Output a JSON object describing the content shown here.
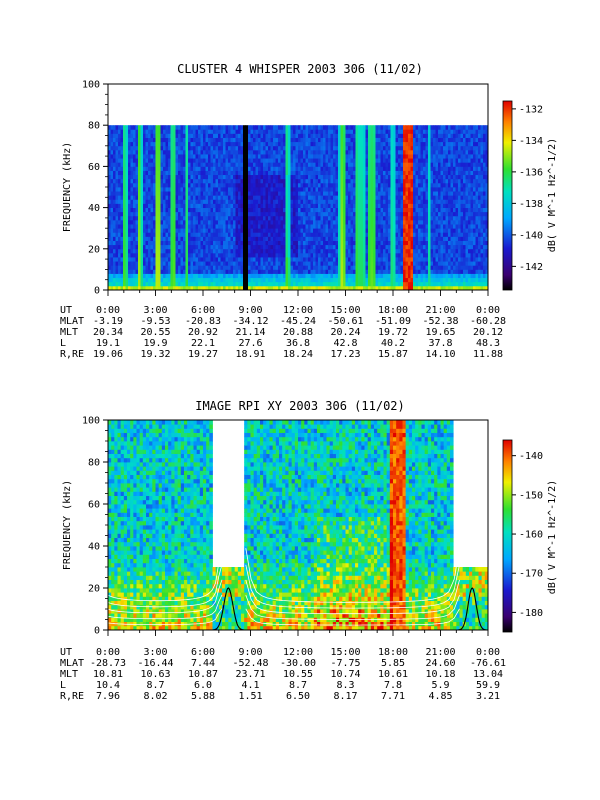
{
  "chart_data": [
    {
      "type": "heatmap",
      "title": "CLUSTER 4 WHISPER 2003 306 (11/02)",
      "ylabel": "FREQUENCY (kHz)",
      "ylim": [
        0,
        100
      ],
      "y_ticks": [
        "0",
        "20",
        "40",
        "60",
        "80",
        "100"
      ],
      "data_max_frequency_khz": 80,
      "x_ticks": [
        "0:00",
        "3:00",
        "6:00",
        "9:00",
        "12:00",
        "15:00",
        "18:00",
        "21:00",
        "0:00"
      ],
      "colorbar": {
        "label": "dB( V M^-1 Hz^-1/2)",
        "range": [
          -143.5,
          -131.5
        ],
        "ticks": [
          "-132",
          "-134",
          "-136",
          "-138",
          "-140",
          "-142"
        ],
        "tick_values": [
          -132,
          -134,
          -136,
          -138,
          -140,
          -142
        ]
      },
      "orbit_table": {
        "rows": [
          {
            "label": "UT",
            "values": [
              "0:00",
              "3:00",
              "6:00",
              "9:00",
              "12:00",
              "15:00",
              "18:00",
              "21:00",
              "0:00"
            ]
          },
          {
            "label": "MLAT",
            "values": [
              "-3.19",
              "-9.53",
              "-20.83",
              "-34.12",
              "-45.24",
              "-50.61",
              "-51.09",
              "-52.38",
              "-60.28"
            ]
          },
          {
            "label": "MLT",
            "values": [
              "20.34",
              "20.55",
              "20.92",
              "21.14",
              "20.88",
              "20.24",
              "19.72",
              "19.65",
              "20.12"
            ]
          },
          {
            "label": "L",
            "values": [
              "19.1",
              "19.9",
              "22.1",
              "27.6",
              "36.8",
              "42.8",
              "40.2",
              "37.8",
              "48.3"
            ]
          },
          {
            "label": "R,RE",
            "values": [
              "19.06",
              "19.32",
              "19.27",
              "18.91",
              "18.24",
              "17.23",
              "15.87",
              "14.10",
              "11.88"
            ]
          }
        ]
      }
    },
    {
      "type": "heatmap",
      "title": "IMAGE RPI XY 2003 306 (11/02)",
      "ylabel": "FREQUENCY (kHz)",
      "ylim": [
        0,
        100
      ],
      "y_ticks": [
        "0",
        "20",
        "40",
        "60",
        "80",
        "100"
      ],
      "x_ticks": [
        "0:00",
        "3:00",
        "6:00",
        "9:00",
        "12:00",
        "15:00",
        "18:00",
        "21:00",
        "0:00"
      ],
      "data_gaps_ut_hours": [
        [
          6.6,
          8.5
        ],
        [
          21.9,
          24.0
        ]
      ],
      "colorbar": {
        "label": "dB( V M^-1 Hz^-1/2)",
        "range": [
          -185,
          -136
        ],
        "ticks": [
          "-140",
          "-150",
          "-160",
          "-170",
          "-180"
        ],
        "tick_values": [
          -140,
          -150,
          -160,
          -170,
          -180
        ]
      },
      "orbit_table": {
        "rows": [
          {
            "label": "UT",
            "values": [
              "0:00",
              "3:00",
              "6:00",
              "9:00",
              "12:00",
              "15:00",
              "18:00",
              "21:00",
              "0:00"
            ]
          },
          {
            "label": "MLAT",
            "values": [
              "-28.73",
              "-16.44",
              "7.44",
              "-52.48",
              "-30.00",
              "-7.75",
              "5.85",
              "24.60",
              "-76.61"
            ]
          },
          {
            "label": "MLT",
            "values": [
              "10.81",
              "10.63",
              "10.87",
              "23.71",
              "10.55",
              "10.74",
              "10.61",
              "10.18",
              "13.04"
            ]
          },
          {
            "label": "L",
            "values": [
              "10.4",
              "8.7",
              "6.0",
              "4.1",
              "8.7",
              "8.3",
              "7.8",
              "5.9",
              "59.9"
            ]
          },
          {
            "label": "R,RE",
            "values": [
              "7.96",
              "8.02",
              "5.88",
              "1.51",
              "6.50",
              "8.17",
              "7.71",
              "4.85",
              "3.21"
            ]
          }
        ]
      }
    }
  ]
}
